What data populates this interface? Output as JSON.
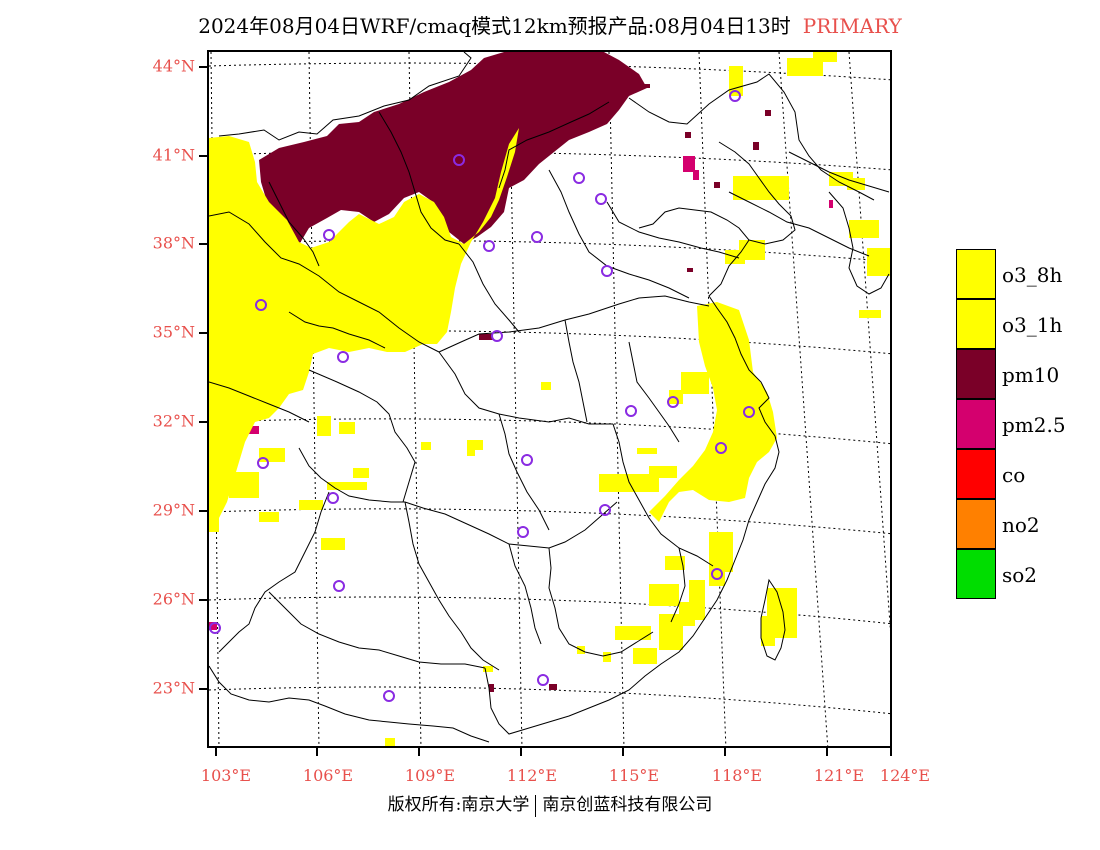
{
  "title": {
    "main": "2024年08月04日WRF/cmaq模式12km预报产品:08月04日13时",
    "tag": "PRIMARY"
  },
  "axes": {
    "lat_labels": [
      "44°N",
      "41°N",
      "38°N",
      "35°N",
      "32°N",
      "29°N",
      "26°N",
      "23°N"
    ],
    "lon_labels": [
      "103°E",
      "106°E",
      "109°E",
      "112°E",
      "115°E",
      "118°E",
      "121°E",
      "124°E"
    ]
  },
  "legend": {
    "items": [
      {
        "label": "o3_8h",
        "color": "#ffff00"
      },
      {
        "label": "o3_1h",
        "color": "#ffff00"
      },
      {
        "label": "pm10",
        "color": "#7a0028"
      },
      {
        "label": "pm2.5",
        "color": "#d4006e"
      },
      {
        "label": "co",
        "color": "#ff0000"
      },
      {
        "label": "no2",
        "color": "#ff8000"
      },
      {
        "label": "so2",
        "color": "#00dd00"
      }
    ]
  },
  "footer": {
    "left": "版权所有:南京大学",
    "right": "南京创蓝科技有限公司"
  },
  "colors": {
    "label_red": "#e8504c",
    "o3": "#ffff00",
    "pm10": "#7a0028",
    "pm25": "#d4006e",
    "station": "#8a2be2"
  }
}
